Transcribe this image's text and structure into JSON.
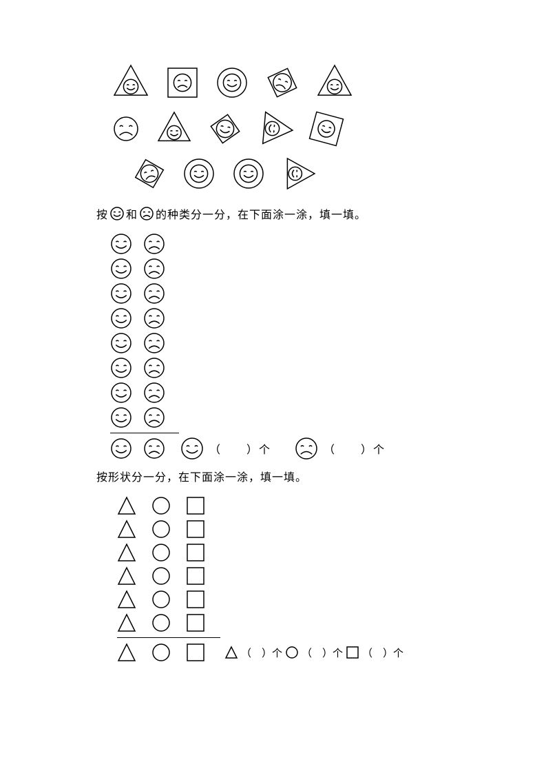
{
  "stroke_color": "#000000",
  "bg_color": "#ffffff",
  "stroke_width": 1.5,
  "top_shapes": {
    "rows": [
      [
        {
          "outer": "triangle",
          "face": "smile",
          "size": 48,
          "rot": 0
        },
        {
          "outer": "square",
          "face": "frown",
          "size": 42,
          "rot": 0
        },
        {
          "outer": "circle",
          "face": "smile",
          "size": 42,
          "rot": 0
        },
        {
          "outer": "diamond",
          "face": "frown",
          "size": 44,
          "rot": 20
        },
        {
          "outer": "triangle",
          "face": "smile",
          "size": 48,
          "rot": 0
        }
      ],
      [
        {
          "outer": "none",
          "face": "frown",
          "size": 34,
          "rot": 0
        },
        {
          "outer": "triangle",
          "face": "smile",
          "size": 46,
          "rot": 0
        },
        {
          "outer": "diamond",
          "face": "smile",
          "size": 42,
          "rot": 10
        },
        {
          "outer": "triangle",
          "face": "smile",
          "size": 46,
          "rot": 95
        },
        {
          "outer": "square",
          "face": "smile",
          "size": 40,
          "rot": 15
        }
      ],
      [
        {
          "outer": "diamond",
          "face": "frown",
          "size": 42,
          "rot": -15
        },
        {
          "outer": "circle",
          "face": "smile",
          "size": 42,
          "rot": 0
        },
        {
          "outer": "circle",
          "face": "smile",
          "size": 42,
          "rot": 0
        },
        {
          "outer": "triangle",
          "face": "smile",
          "size": 44,
          "rot": 90
        }
      ]
    ],
    "row_offsets": [
      0,
      0,
      30
    ]
  },
  "instruction1": {
    "prefix": "按",
    "mid": "和",
    "suffix": "的种类分一分，在下面涂一涂，填一填。"
  },
  "face_tally": {
    "rows": 8,
    "header_rows": 1,
    "col1_face": "smile",
    "col2_face": "frown",
    "icon_size": 28,
    "gap": 16
  },
  "face_answers": {
    "items": [
      {
        "face": "smile",
        "label_open": "（",
        "label_close": "）个"
      },
      {
        "face": "frown",
        "label_open": "（",
        "label_close": "）个"
      }
    ],
    "icon_size": 30,
    "blank": "　　"
  },
  "instruction2": "按形状分一分，在下面涂一涂，填一填。",
  "shape_tally": {
    "rows": 6,
    "header_rows": 1,
    "cols": [
      "triangle",
      "circle",
      "square"
    ],
    "icon_size": 24
  },
  "shape_answers": {
    "items": [
      {
        "shape": "triangle"
      },
      {
        "shape": "circle"
      },
      {
        "shape": "square"
      }
    ],
    "label_open": "（",
    "label_close": "）个",
    "blank": "　"
  }
}
